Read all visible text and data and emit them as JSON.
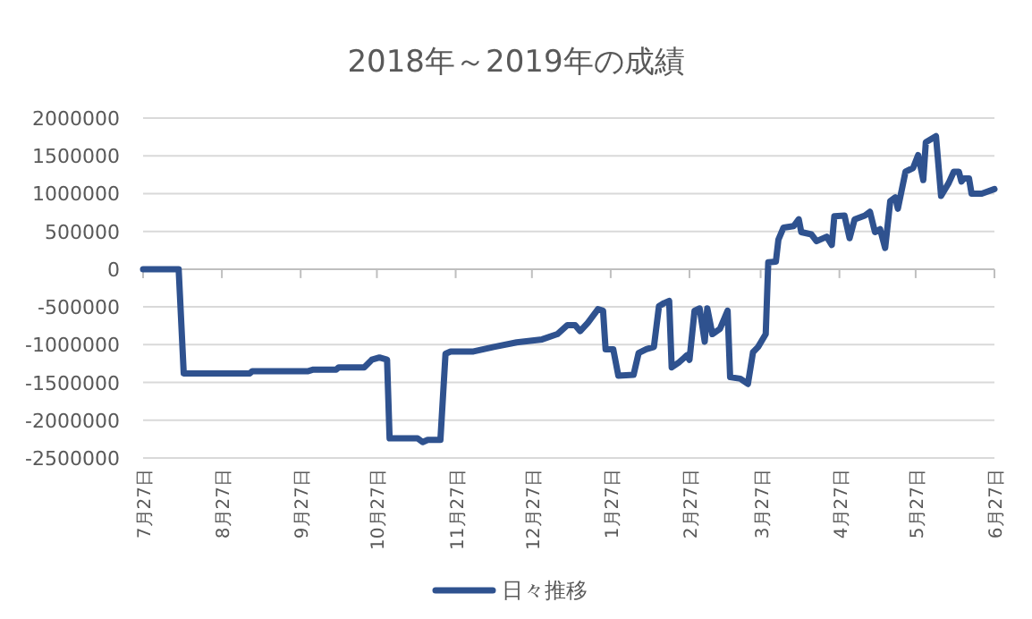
{
  "chart_data": {
    "type": "line",
    "title": "2018年～2019年の成績",
    "x": [
      "2018-07-27",
      "2018-08-10",
      "2018-08-12",
      "2018-09-07",
      "2018-09-08",
      "2018-09-30",
      "2018-10-02",
      "2018-10-11",
      "2018-10-12",
      "2018-10-22",
      "2018-10-25",
      "2018-10-28",
      "2018-10-31",
      "2018-11-01",
      "2018-11-12",
      "2018-11-14",
      "2018-11-16",
      "2018-11-21",
      "2018-11-23",
      "2018-11-25",
      "2018-12-04",
      "2018-12-12",
      "2018-12-21",
      "2018-12-31",
      "2019-01-06",
      "2019-01-10",
      "2019-01-13",
      "2019-01-15",
      "2019-01-18",
      "2019-01-22",
      "2019-01-24",
      "2019-01-25",
      "2019-01-28",
      "2019-01-30",
      "2019-02-05",
      "2019-02-07",
      "2019-02-10",
      "2019-02-13",
      "2019-02-15",
      "2019-02-17",
      "2019-02-19",
      "2019-02-20",
      "2019-02-23",
      "2019-02-26",
      "2019-02-27",
      "2019-03-01",
      "2019-03-03",
      "2019-03-05",
      "2019-03-06",
      "2019-03-08",
      "2019-03-11",
      "2019-03-14",
      "2019-03-15",
      "2019-03-19",
      "2019-03-22",
      "2019-03-24",
      "2019-03-26",
      "2019-03-29",
      "2019-03-30",
      "2019-04-02",
      "2019-04-03",
      "2019-04-05",
      "2019-04-09",
      "2019-04-11",
      "2019-04-12",
      "2019-04-16",
      "2019-04-18",
      "2019-04-22",
      "2019-04-24",
      "2019-04-25",
      "2019-04-29",
      "2019-05-01",
      "2019-05-03",
      "2019-05-07",
      "2019-05-09",
      "2019-05-11",
      "2019-05-13",
      "2019-05-15",
      "2019-05-17",
      "2019-05-19",
      "2019-05-20",
      "2019-05-23",
      "2019-05-26",
      "2019-05-28",
      "2019-05-30",
      "2019-05-31",
      "2019-06-04",
      "2019-06-06",
      "2019-06-09",
      "2019-06-11",
      "2019-06-13",
      "2019-06-14",
      "2019-06-15",
      "2019-06-17",
      "2019-06-18",
      "2019-06-22",
      "2019-06-27"
    ],
    "series": [
      {
        "name": "日々推移",
        "color": "#2f528f",
        "values": [
          0,
          0,
          -1380000,
          -1380000,
          -1350000,
          -1350000,
          -1330000,
          -1330000,
          -1300000,
          -1300000,
          -1200000,
          -1170000,
          -1200000,
          -2240000,
          -2240000,
          -2290000,
          -2260000,
          -2260000,
          -1120000,
          -1090000,
          -1090000,
          -1030000,
          -970000,
          -930000,
          -860000,
          -740000,
          -740000,
          -820000,
          -710000,
          -530000,
          -550000,
          -1060000,
          -1060000,
          -1410000,
          -1400000,
          -1110000,
          -1060000,
          -1030000,
          -490000,
          -450000,
          -420000,
          -1300000,
          -1230000,
          -1140000,
          -1200000,
          -550000,
          -520000,
          -960000,
          -520000,
          -860000,
          -790000,
          -550000,
          -1430000,
          -1450000,
          -1520000,
          -1100000,
          -1030000,
          -860000,
          90000,
          100000,
          390000,
          550000,
          570000,
          660000,
          490000,
          460000,
          370000,
          430000,
          320000,
          700000,
          710000,
          410000,
          660000,
          710000,
          760000,
          490000,
          530000,
          280000,
          900000,
          950000,
          800000,
          1290000,
          1340000,
          1510000,
          1180000,
          1680000,
          1760000,
          970000,
          1140000,
          1290000,
          1290000,
          1160000,
          1200000,
          1200000,
          1000000,
          1000000,
          1060000
        ]
      }
    ],
    "xlim": [
      "2018-07-27",
      "2019-06-27"
    ],
    "xticks": [
      {
        "value": "2018-07-27",
        "label": "7月27日"
      },
      {
        "value": "2018-08-27",
        "label": "8月27日"
      },
      {
        "value": "2018-09-27",
        "label": "9月27日"
      },
      {
        "value": "2018-10-27",
        "label": "10月27日"
      },
      {
        "value": "2018-11-27",
        "label": "11月27日"
      },
      {
        "value": "2018-12-27",
        "label": "12月27日"
      },
      {
        "value": "2019-01-27",
        "label": "1月27日"
      },
      {
        "value": "2019-02-27",
        "label": "2月27日"
      },
      {
        "value": "2019-03-27",
        "label": "3月27日"
      },
      {
        "value": "2019-04-27",
        "label": "4月27日"
      },
      {
        "value": "2019-05-27",
        "label": "5月27日"
      },
      {
        "value": "2019-06-27",
        "label": "6月27日"
      }
    ],
    "ylim": [
      -2500000,
      2000000
    ],
    "yticks": [
      -2500000,
      -2000000,
      -1500000,
      -1000000,
      -500000,
      0,
      500000,
      1000000,
      1500000,
      2000000
    ],
    "grid": "y",
    "legend": "bottom"
  }
}
